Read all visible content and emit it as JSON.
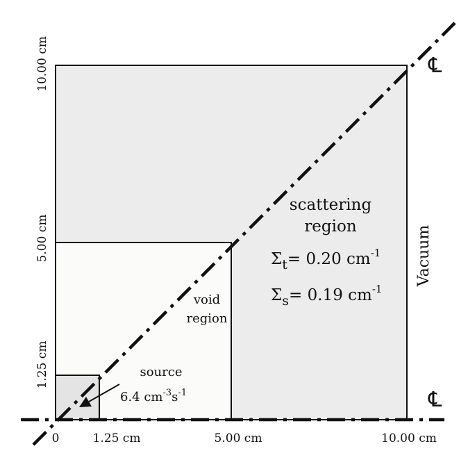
{
  "colors": {
    "scattering_fill": "#ececec",
    "void_fill": "#fbfbf9",
    "source_fill": "#e4e4e4",
    "line": "#111111"
  },
  "axis": {
    "x_ticks": [
      "0",
      "1.25 cm",
      "5.00 cm",
      "10.00 cm"
    ],
    "y_ticks": [
      "1.25 cm",
      "5.00 cm",
      "10.00 cm"
    ]
  },
  "centerline_symbol": "℄",
  "scattering": {
    "line1": "scattering",
    "line2": "region",
    "sigma_t": {
      "sym": "Σ",
      "sub": "t",
      "eq": "= 0.20 cm",
      "exp": "-1"
    },
    "sigma_s": {
      "sym": "Σ",
      "sub": "s",
      "eq": "= 0.19 cm",
      "exp": "-1"
    }
  },
  "void": {
    "line1": "void",
    "line2": "region"
  },
  "source": {
    "line1": "source",
    "value": "6.4 cm",
    "exp1": "-3",
    "unit2": "s",
    "exp2": "-1"
  },
  "boundary": {
    "label": "Vacuum"
  }
}
